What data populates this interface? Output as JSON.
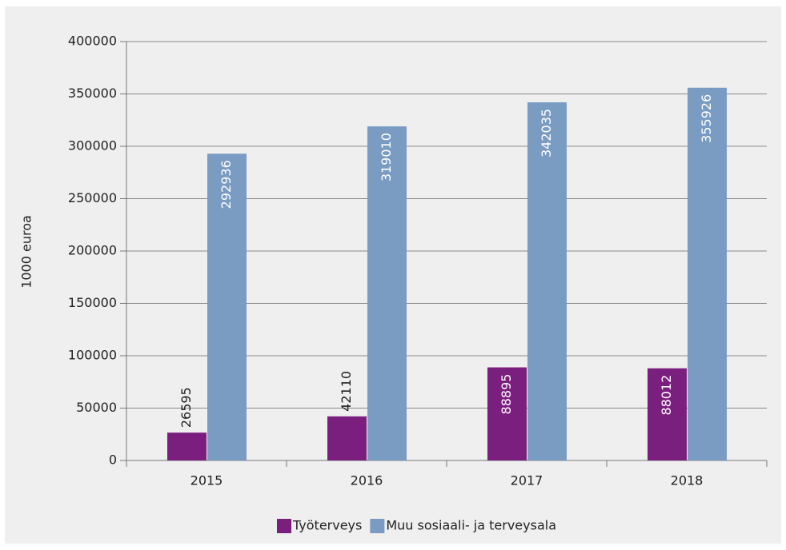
{
  "chart_data": {
    "type": "bar",
    "categories": [
      "2015",
      "2016",
      "2017",
      "2018"
    ],
    "series": [
      {
        "name": "Työterveys",
        "color": "#7b1f7e",
        "values": [
          26595,
          42110,
          88895,
          88012
        ]
      },
      {
        "name": "Muu sosiaali- ja terveysala",
        "color": "#7a9cc2",
        "values": [
          292936,
          319010,
          342035,
          355926
        ]
      }
    ],
    "y_label": "1000 euroa",
    "ylim": [
      0,
      400000
    ],
    "yticks": [
      0,
      50000,
      100000,
      150000,
      200000,
      250000,
      300000,
      350000,
      400000
    ],
    "grid": true,
    "legend": "bottom"
  }
}
